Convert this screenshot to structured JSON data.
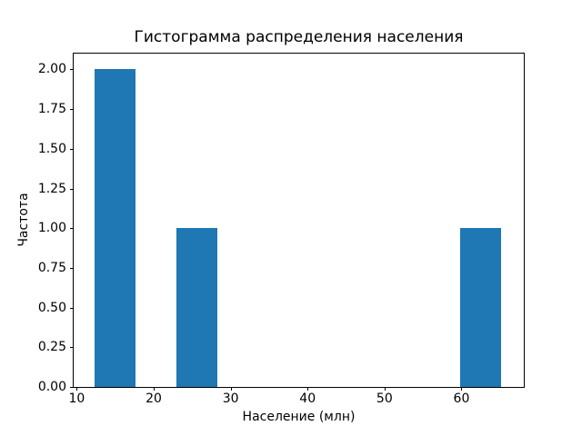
{
  "chart_data": {
    "type": "bar",
    "subtype": "histogram",
    "title": "Гистограмма распределения населения",
    "xlabel": "Население (млн)",
    "ylabel": "Частота",
    "bar_color": "#1f77b4",
    "axis_color": "#000000",
    "background_color": "#ffffff",
    "grid": false,
    "legend": "none",
    "xlim": [
      9.6,
      68.1
    ],
    "ylim": [
      0,
      2.1
    ],
    "xticks": [
      {
        "value": 10,
        "label": "10"
      },
      {
        "value": 20,
        "label": "20"
      },
      {
        "value": 30,
        "label": "30"
      },
      {
        "value": 40,
        "label": "40"
      },
      {
        "value": 50,
        "label": "50"
      },
      {
        "value": 60,
        "label": "60"
      }
    ],
    "yticks": [
      {
        "value": 0.0,
        "label": "0.00"
      },
      {
        "value": 0.25,
        "label": "0.25"
      },
      {
        "value": 0.5,
        "label": "0.50"
      },
      {
        "value": 0.75,
        "label": "0.75"
      },
      {
        "value": 1.0,
        "label": "1.00"
      },
      {
        "value": 1.25,
        "label": "1.25"
      },
      {
        "value": 1.5,
        "label": "1.50"
      },
      {
        "value": 1.75,
        "label": "1.75"
      },
      {
        "value": 2.0,
        "label": "2.00"
      }
    ],
    "bars": [
      {
        "bin_start": 12.3,
        "bin_end": 17.65,
        "count": 2
      },
      {
        "bin_start": 22.95,
        "bin_end": 28.3,
        "count": 1
      },
      {
        "bin_start": 59.85,
        "bin_end": 65.2,
        "count": 1
      }
    ]
  }
}
